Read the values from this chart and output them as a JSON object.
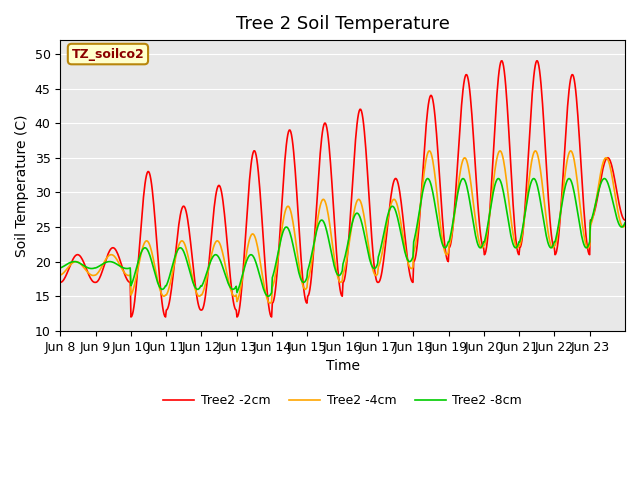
{
  "title": "Tree 2 Soil Temperature",
  "ylabel": "Soil Temperature (C)",
  "xlabel": "Time",
  "annotation": "TZ_soilco2",
  "ylim": [
    10,
    52
  ],
  "yticks": [
    10,
    15,
    20,
    25,
    30,
    35,
    40,
    45,
    50
  ],
  "xtick_labels": [
    "Jun 8",
    "Jun 9",
    "Jun 10",
    "Jun 11",
    "Jun 12",
    "Jun 13",
    "Jun 14",
    "Jun 15",
    "Jun 16",
    "Jun 17",
    "Jun 18",
    "Jun 19",
    "Jun 20",
    "Jun 21",
    "Jun 22",
    "Jun 23"
  ],
  "legend": [
    "Tree2 -2cm",
    "Tree2 -4cm",
    "Tree2 -8cm"
  ],
  "colors": [
    "#ff0000",
    "#ffa500",
    "#00cc00"
  ],
  "bg_color": "#e8e8e8",
  "line_width": 1.2,
  "title_fontsize": 13,
  "label_fontsize": 10,
  "tick_fontsize": 9,
  "peak_2cm": [
    21,
    22,
    33,
    28,
    31,
    36,
    39,
    40,
    42,
    32,
    44,
    47,
    49,
    49,
    47,
    35
  ],
  "trough_2cm": [
    17,
    17,
    12,
    13,
    13,
    12,
    14,
    15,
    17,
    17,
    20,
    22,
    21,
    22,
    21,
    26
  ],
  "peak_4cm": [
    20,
    21,
    23,
    23,
    23,
    24,
    28,
    29,
    29,
    29,
    36,
    35,
    36,
    36,
    36,
    35
  ],
  "trough_4cm": [
    18,
    18,
    15,
    15,
    15,
    14,
    16,
    17,
    18,
    19,
    21,
    22,
    22,
    22,
    22,
    25
  ],
  "peak_8cm": [
    20,
    20,
    22,
    22,
    21,
    21,
    25,
    26,
    27,
    28,
    32,
    32,
    32,
    32,
    32,
    32
  ],
  "trough_8cm": [
    19,
    19,
    16,
    16,
    16,
    15,
    17,
    18,
    19,
    20,
    22,
    22,
    22,
    22,
    22,
    25
  ]
}
